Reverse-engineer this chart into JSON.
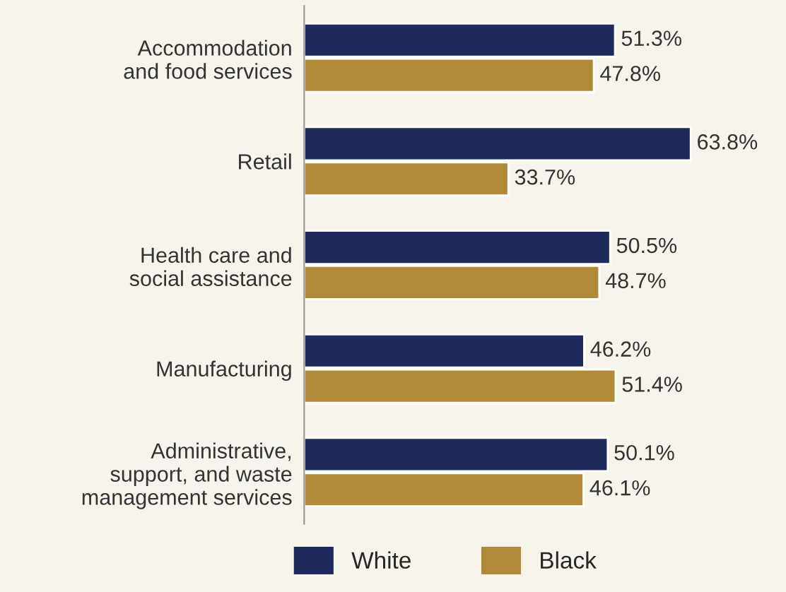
{
  "chart_data": {
    "type": "bar",
    "orientation": "horizontal",
    "categories": [
      "Accommodation\nand food services",
      "Retail",
      "Health care and\nsocial assistance",
      "Manufacturing",
      "Administrative,\nsupport, and waste\nmanagement services"
    ],
    "series": [
      {
        "name": "White",
        "color": "#1f2a5c",
        "values": [
          51.3,
          63.8,
          50.5,
          46.2,
          50.1
        ],
        "value_labels": [
          "51.3%",
          "63.8%",
          "50.5%",
          "46.2%",
          "50.1%"
        ]
      },
      {
        "name": "Black",
        "color": "#b08a36",
        "values": [
          47.8,
          33.7,
          48.7,
          51.4,
          46.1
        ],
        "value_labels": [
          "47.8%",
          "33.7%",
          "48.7%",
          "51.4%",
          "46.1%"
        ]
      }
    ],
    "legend": "bottom",
    "grid": false
  }
}
